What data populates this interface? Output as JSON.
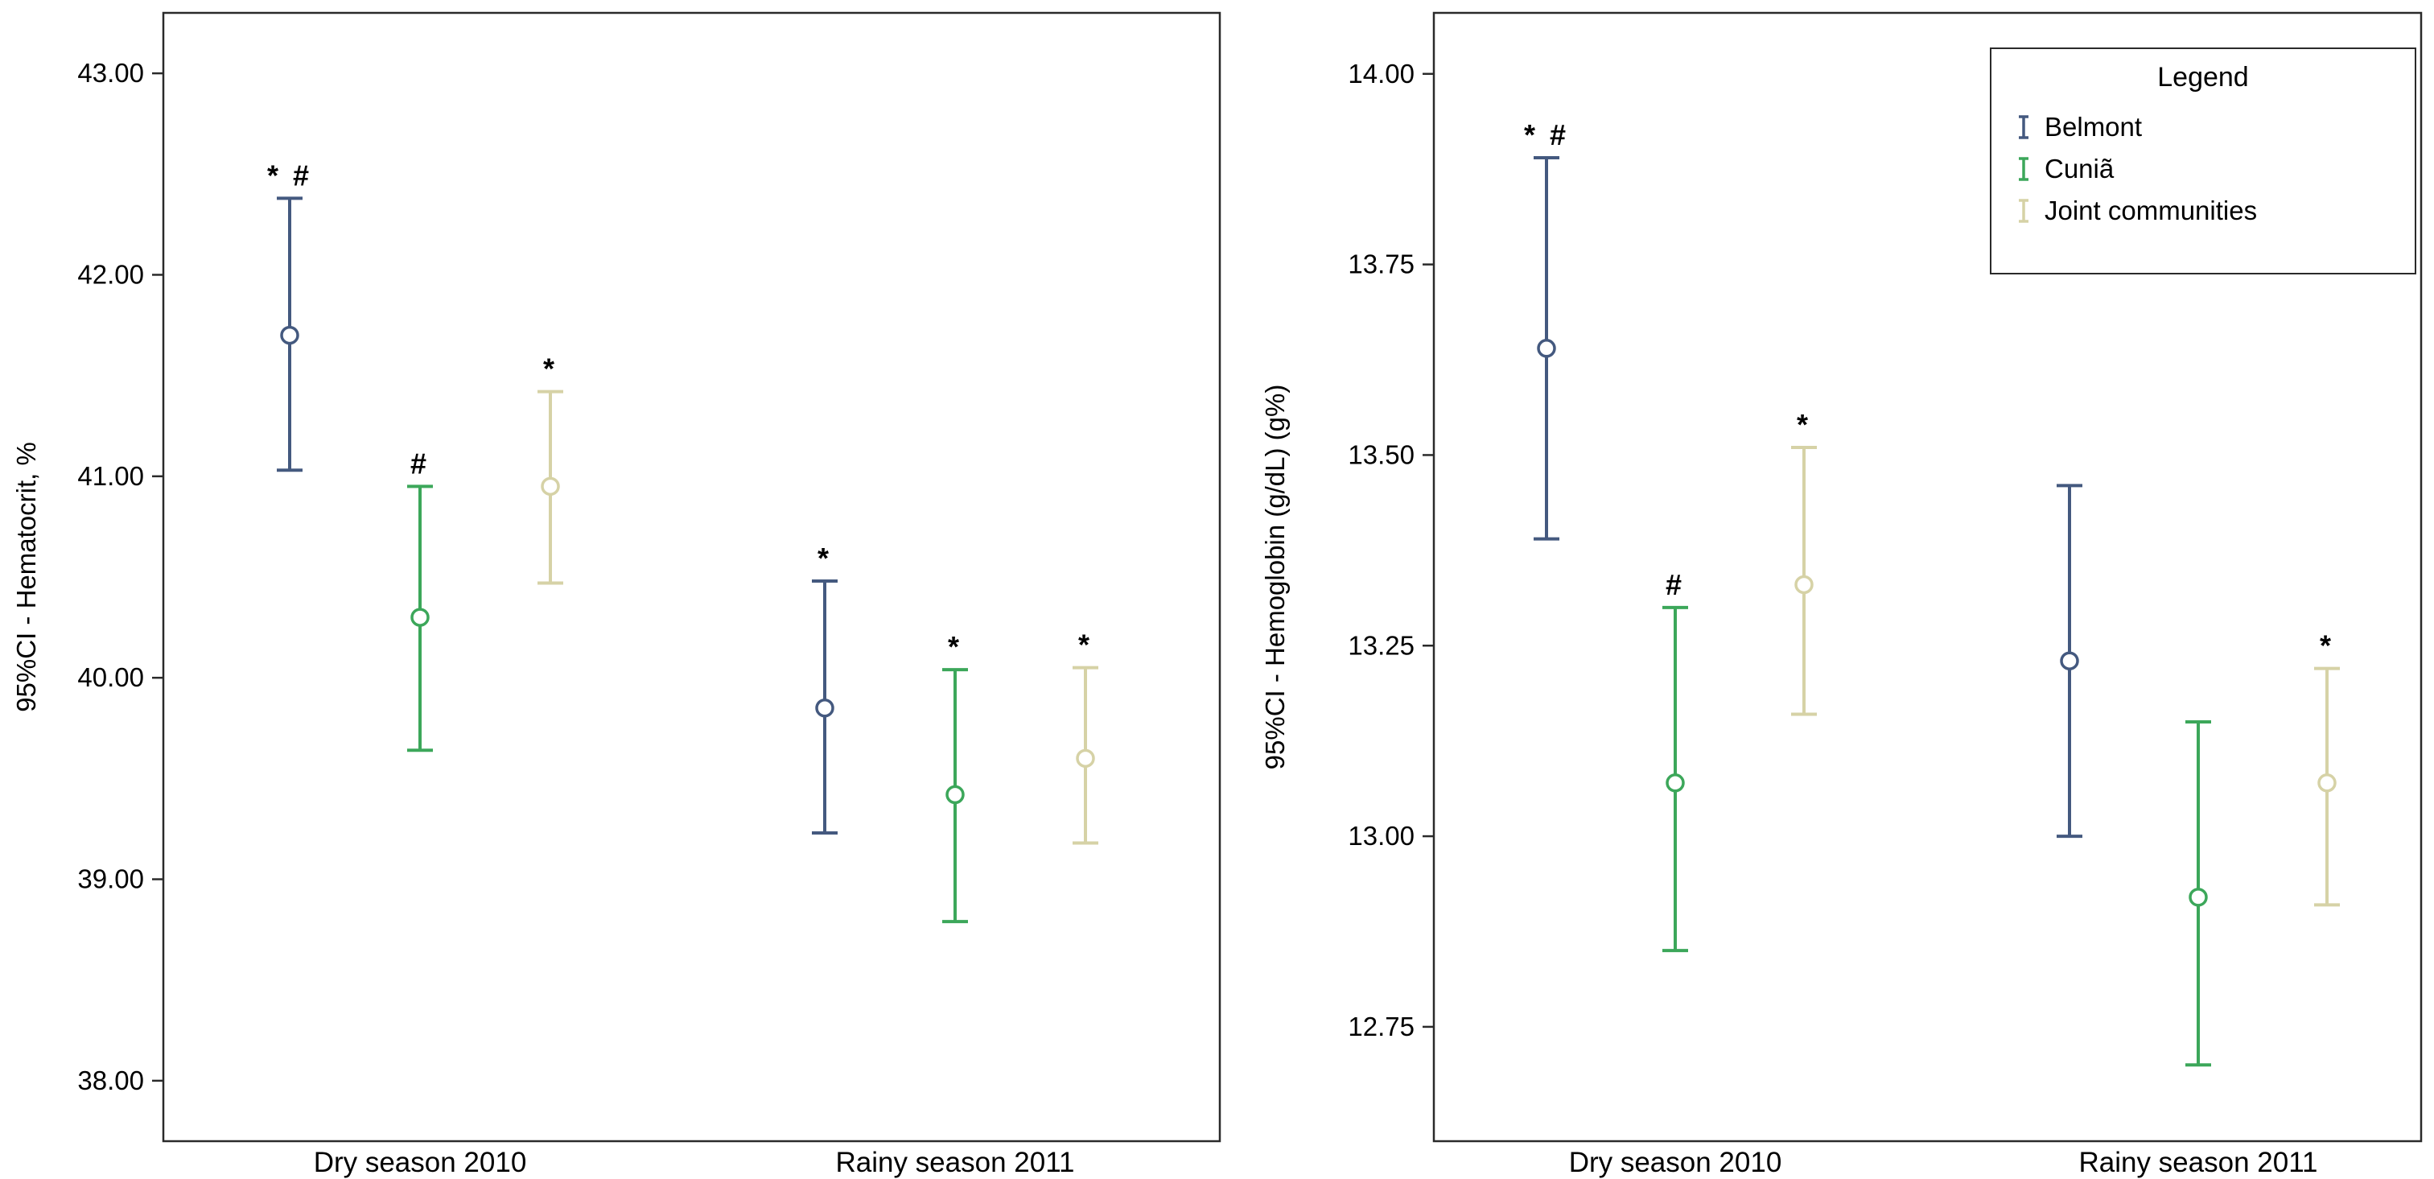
{
  "figure": {
    "background": "#ffffff",
    "text_color": "#000000",
    "border_color": "#2a2a2a"
  },
  "legend": {
    "title": "Legend",
    "position": "top-right",
    "entries": [
      {
        "label": "Belmont",
        "color": "#44597f",
        "glyph": "errorbar-icon"
      },
      {
        "label": "Cuniã",
        "color": "#3ca75a",
        "glyph": "errorbar-icon"
      },
      {
        "label": "Joint communities",
        "color": "#d6d2a6",
        "glyph": "errorbar-icon"
      }
    ]
  },
  "chart_data": [
    {
      "type": "errorbar",
      "title": "",
      "xlabel": "",
      "ylabel": "95%CI - Hematocrit, %",
      "categories": [
        "Dry season 2010",
        "Rainy season 2011"
      ],
      "ylim": [
        37.7,
        43.3
      ],
      "yticks": [
        38,
        39,
        40,
        41,
        42,
        43
      ],
      "ytick_labels": [
        "38.00",
        "39.00",
        "40.00",
        "41.00",
        "42.00",
        "43.00"
      ],
      "grid": false,
      "series": [
        {
          "name": "Belmont",
          "color": "#44597f",
          "points": [
            {
              "category": "Dry season 2010",
              "mean": 41.7,
              "ci_low": 41.03,
              "ci_high": 42.38,
              "annotation": "* #"
            },
            {
              "category": "Rainy season 2011",
              "mean": 39.85,
              "ci_low": 39.23,
              "ci_high": 40.48,
              "annotation": "*"
            }
          ]
        },
        {
          "name": "Cuniã",
          "color": "#3ca75a",
          "points": [
            {
              "category": "Dry season 2010",
              "mean": 40.3,
              "ci_low": 39.64,
              "ci_high": 40.95,
              "annotation": "#"
            },
            {
              "category": "Rainy season 2011",
              "mean": 39.42,
              "ci_low": 38.79,
              "ci_high": 40.04,
              "annotation": "*"
            }
          ]
        },
        {
          "name": "Joint communities",
          "color": "#d6d2a6",
          "points": [
            {
              "category": "Dry season 2010",
              "mean": 40.95,
              "ci_low": 40.47,
              "ci_high": 41.42,
              "annotation": "*"
            },
            {
              "category": "Rainy season 2011",
              "mean": 39.6,
              "ci_low": 39.18,
              "ci_high": 40.05,
              "annotation": "*"
            }
          ]
        }
      ]
    },
    {
      "type": "errorbar",
      "title": "",
      "xlabel": "",
      "ylabel": "95%CI - Hemoglobin (g/dL) (g%)",
      "categories": [
        "Dry season 2010",
        "Rainy season 2011"
      ],
      "ylim": [
        12.6,
        14.08
      ],
      "yticks": [
        12.75,
        13.0,
        13.25,
        13.5,
        13.75,
        14.0
      ],
      "ytick_labels": [
        "12.75",
        "13.00",
        "13.25",
        "13.50",
        "13.75",
        "14.00"
      ],
      "grid": false,
      "legend_position": "top-right",
      "series": [
        {
          "name": "Belmont",
          "color": "#44597f",
          "points": [
            {
              "category": "Dry season 2010",
              "mean": 13.64,
              "ci_low": 13.39,
              "ci_high": 13.89,
              "annotation": "* #"
            },
            {
              "category": "Rainy season 2011",
              "mean": 13.23,
              "ci_low": 13.0,
              "ci_high": 13.46,
              "annotation": ""
            }
          ]
        },
        {
          "name": "Cuniã",
          "color": "#3ca75a",
          "points": [
            {
              "category": "Dry season 2010",
              "mean": 13.07,
              "ci_low": 12.85,
              "ci_high": 13.3,
              "annotation": "#"
            },
            {
              "category": "Rainy season 2011",
              "mean": 12.92,
              "ci_low": 12.7,
              "ci_high": 13.15,
              "annotation": ""
            }
          ]
        },
        {
          "name": "Joint communities",
          "color": "#d6d2a6",
          "points": [
            {
              "category": "Dry season 2010",
              "mean": 13.33,
              "ci_low": 13.16,
              "ci_high": 13.51,
              "annotation": "*"
            },
            {
              "category": "Rainy season 2011",
              "mean": 13.07,
              "ci_low": 12.91,
              "ci_high": 13.22,
              "annotation": "*"
            }
          ]
        }
      ]
    }
  ]
}
